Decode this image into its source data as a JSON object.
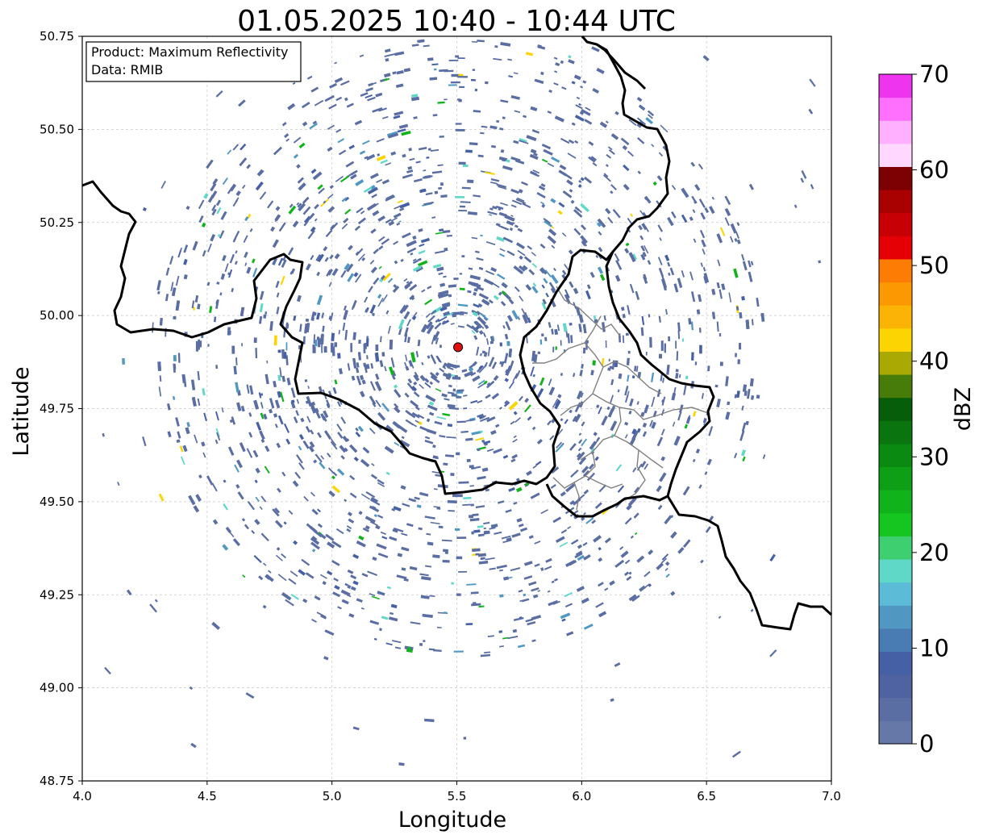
{
  "title": "01.05.2025 10:40 - 10:44 UTC",
  "x_axis": {
    "label": "Longitude",
    "min": 4.0,
    "max": 7.0,
    "ticks": [
      "4.0",
      "4.5",
      "5.0",
      "5.5",
      "6.0",
      "6.5",
      "7.0"
    ]
  },
  "y_axis": {
    "label": "Latitude",
    "min": 48.75,
    "max": 50.75,
    "ticks": [
      "48.75",
      "49.00",
      "49.25",
      "49.50",
      "49.75",
      "50.00",
      "50.25",
      "50.50",
      "50.75"
    ]
  },
  "grid": true,
  "info_box": {
    "product": "Product: Maximum Reflectivity",
    "data": "Data: RMIB"
  },
  "radar_site": {
    "lon": 5.505,
    "lat": 49.915,
    "color": "#e31010"
  },
  "colorbar": {
    "label": "dBZ",
    "min": 0,
    "max": 70,
    "ticks": [
      "0",
      "10",
      "20",
      "30",
      "40",
      "50",
      "60",
      "70"
    ],
    "colors": [
      "#6678a8",
      "#5a6ea4",
      "#4e63a0",
      "#4660a6",
      "#4a7cb4",
      "#5097c2",
      "#5cbcd8",
      "#60d8c8",
      "#3ed070",
      "#16c620",
      "#10b41a",
      "#0e9f16",
      "#0b8a12",
      "#0a740f",
      "#065e0b",
      "#477b0a",
      "#a9a904",
      "#fbd401",
      "#fbb405",
      "#fc9802",
      "#fd7c03",
      "#e40004",
      "#c70005",
      "#a90002",
      "#7d0002",
      "#ffd8ff",
      "#ffb0ff",
      "#ff70ff",
      "#ee34ee"
    ]
  },
  "colors": {
    "echo": "#5b73a6",
    "border": "#000000",
    "region": "#808080",
    "grid": "#c8c8c8"
  }
}
